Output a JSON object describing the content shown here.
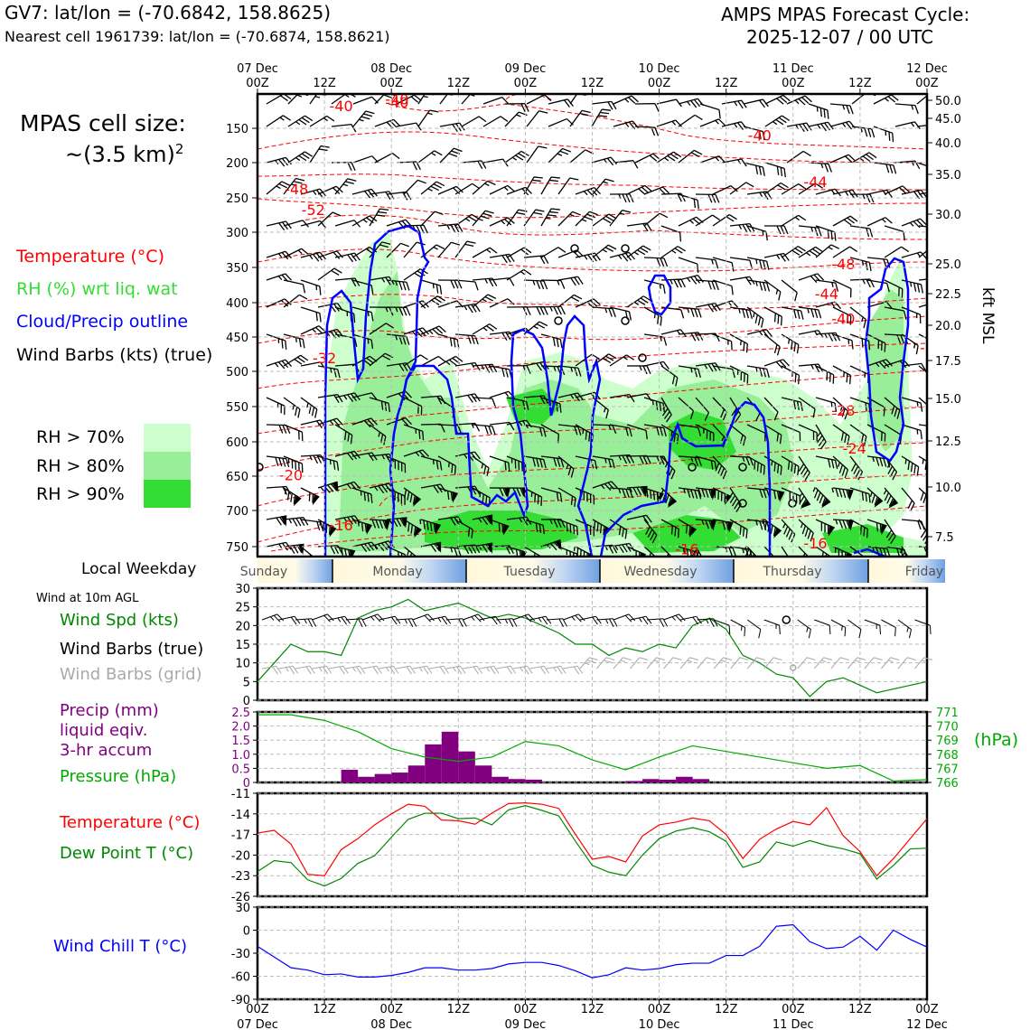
{
  "header": {
    "station": "GV7: lat/lon = (-70.6842, 158.8625)",
    "nearest": "Nearest cell 1961739: lat/lon = (-70.6874, 158.8621)",
    "cycle_title": "AMPS MPAS Forecast Cycle:",
    "cycle_time": "2025-12-07 / 00 UTC"
  },
  "legend": {
    "cell_size_label": "MPAS cell size:",
    "cell_size_value": "~(3.5 km)",
    "cell_size_exp": "2",
    "temperature": "Temperature (°C)",
    "rh": "RH (%) wrt liq. wat",
    "cloud": "Cloud/Precip outline",
    "barbs": "Wind Barbs (kts) (true)",
    "rh70": "RH > 70%",
    "rh80": "RH > 80%",
    "rh90": "RH > 90%"
  },
  "colors": {
    "temp": "#ff0000",
    "rh_text": "#33dd33",
    "cloud": "#0000ff",
    "rh70": "#ccffcc",
    "rh80": "#99ee99",
    "rh90": "#33dd33",
    "precip": "#800080",
    "pressure": "#00aa00",
    "dewpoint": "#008800",
    "windchill": "#0000ff",
    "grid_barbs": "#aaaaaa"
  },
  "time_axis": {
    "top_dates": [
      "07 Dec",
      "",
      "08 Dec",
      "",
      "09 Dec",
      "",
      "10 Dec",
      "",
      "11 Dec",
      "",
      "12 Dec"
    ],
    "hours": [
      "00Z",
      "12Z",
      "00Z",
      "12Z",
      "00Z",
      "12Z",
      "00Z",
      "12Z",
      "00Z",
      "12Z",
      "00Z"
    ],
    "bottom_dates": [
      "07 Dec",
      "",
      "08 Dec",
      "",
      "09 Dec",
      "",
      "10 Dec",
      "",
      "11 Dec",
      "",
      "12 Dec"
    ]
  },
  "weekday": {
    "label": "Local Weekday",
    "days": [
      "Sunday",
      "Monday",
      "Tuesday",
      "Wednesday",
      "Thursday",
      "Friday"
    ]
  },
  "wind_panel": {
    "title": "Wind at 10m AGL",
    "spd_label": "Wind Spd (kts)",
    "true_label": "Wind Barbs (true)",
    "grid_label": "Wind Barbs (grid)"
  },
  "precip_panel": {
    "label1": "Precip (mm)",
    "label2": "liquid eqiv.",
    "label3": "3-hr accum",
    "pressure_label": "Pressure (hPa)",
    "hpa_unit": "(hPa)"
  },
  "temp_panel": {
    "temp_label": "Temperature (°C)",
    "dew_label": "Dew Point T (°C)"
  },
  "chill_panel": {
    "label": "Wind Chill T (°C)"
  },
  "chart_data": [
    {
      "type": "contour",
      "title": "Upper-air time-height cross section",
      "x_hours": [
        0,
        120
      ],
      "y_pressure_ticks": [
        "150",
        "200",
        "250",
        "300",
        "350",
        "400",
        "450",
        "500",
        "550",
        "600",
        "650",
        "700",
        "750"
      ],
      "right_kft_ticks": [
        "50.0",
        "45.0",
        "40.0",
        "35.0",
        "30.0",
        "25.0",
        "22.5",
        "20.0",
        "17.5",
        "15.0",
        "12.5",
        "10.0",
        "7.5"
      ],
      "right_label": "kft MSL",
      "temp_contour_labels": [
        {
          "t": "-40",
          "h": 15,
          "p": 117
        },
        {
          "t": "-40",
          "h": 25,
          "p": 107
        },
        {
          "t": "-40",
          "h": 25,
          "p": 112
        },
        {
          "t": "-40",
          "h": 90,
          "p": 160
        },
        {
          "t": "-44",
          "h": 100,
          "p": 227
        },
        {
          "t": "-48",
          "h": 7,
          "p": 237
        },
        {
          "t": "-52",
          "h": 10,
          "p": 267
        },
        {
          "t": "-48",
          "h": 105,
          "p": 345
        },
        {
          "t": "-44",
          "h": 102,
          "p": 387
        },
        {
          "t": "-40",
          "h": 105,
          "p": 423
        },
        {
          "t": "-32",
          "h": 12,
          "p": 480
        },
        {
          "t": "-28",
          "h": 105,
          "p": 555
        },
        {
          "t": "-24",
          "h": 107,
          "p": 609
        },
        {
          "t": "-20",
          "h": 6,
          "p": 648
        },
        {
          "t": "-16",
          "h": 15,
          "p": 720
        },
        {
          "t": "-16",
          "h": 77,
          "p": 753
        },
        {
          "t": "-16",
          "h": 100,
          "p": 745
        },
        {
          "t": "-3",
          "h": 120,
          "p": 465
        }
      ]
    },
    {
      "type": "line",
      "title": "Wind Spd (kts)",
      "ylim": [
        0,
        30
      ],
      "yticks": [
        "0",
        "5",
        "10",
        "15",
        "20",
        "25",
        "30"
      ],
      "x": [
        0,
        3,
        6,
        9,
        12,
        15,
        18,
        21,
        24,
        27,
        30,
        33,
        36,
        39,
        42,
        45,
        48,
        51,
        54,
        57,
        60,
        63,
        66,
        69,
        72,
        75,
        78,
        81,
        84,
        87,
        90,
        93,
        96,
        99,
        102,
        105,
        108,
        111,
        114,
        117,
        120
      ],
      "values": [
        5,
        10,
        15,
        13,
        13,
        12,
        22,
        24,
        25,
        27,
        24,
        25,
        26,
        24,
        22,
        23,
        22,
        20,
        18,
        15,
        15,
        12,
        14,
        13,
        15,
        14,
        20,
        22,
        19,
        12,
        10,
        7,
        6,
        1,
        5,
        6,
        4,
        2,
        3,
        4,
        5
      ]
    },
    {
      "type": "bar_line",
      "title": "Precip and Pressure",
      "precip_ylim": [
        0,
        2.5
      ],
      "precip_yticks": [
        "0",
        "0.5",
        "1.0",
        "1.5",
        "2.0",
        "2.5"
      ],
      "precip_x": [
        15,
        18,
        21,
        24,
        27,
        30,
        33,
        36,
        39,
        42,
        45,
        48,
        51,
        54,
        57,
        60,
        63,
        66,
        69,
        72,
        75,
        78,
        81,
        84,
        87
      ],
      "precip_values": [
        0.45,
        0.2,
        0.3,
        0.35,
        0.6,
        1.35,
        1.8,
        1.1,
        0.6,
        0.2,
        0.12,
        0.1,
        0,
        0,
        0,
        0,
        0,
        0.05,
        0.12,
        0.1,
        0.2,
        0.12,
        0,
        0,
        0
      ],
      "pressure_ylim": [
        766,
        771
      ],
      "pressure_yticks": [
        "766",
        "767",
        "768",
        "769",
        "770",
        "771"
      ],
      "pressure_x": [
        0,
        6,
        12,
        18,
        24,
        30,
        36,
        42,
        48,
        54,
        60,
        66,
        72,
        78,
        84,
        90,
        96,
        102,
        108,
        114,
        120
      ],
      "pressure_values": [
        770.8,
        770.8,
        770.4,
        769.6,
        768.4,
        767.8,
        767.5,
        767.8,
        768.9,
        768.6,
        767.6,
        766.9,
        767.8,
        768.6,
        768.2,
        767.8,
        767.4,
        767.0,
        767.2,
        766.1,
        766.2
      ]
    },
    {
      "type": "line",
      "title": "Temperature and Dew Point",
      "ylim": [
        -26,
        -11
      ],
      "yticks": [
        "-11",
        "-14",
        "-17",
        "-20",
        "-23",
        "-26"
      ],
      "x": [
        0,
        3,
        6,
        9,
        12,
        15,
        18,
        21,
        24,
        27,
        30,
        33,
        36,
        39,
        42,
        45,
        48,
        51,
        54,
        57,
        60,
        63,
        66,
        69,
        72,
        75,
        78,
        81,
        84,
        87,
        90,
        93,
        96,
        99,
        102,
        105,
        108,
        111,
        114,
        117,
        120
      ],
      "series": [
        {
          "name": "Temperature",
          "values": [
            -16.8,
            -16.4,
            -18.4,
            -22.8,
            -23.0,
            -19.2,
            -17.6,
            -15.6,
            -14.0,
            -12.6,
            -12.9,
            -14.9,
            -15.0,
            -15.5,
            -13.9,
            -12.5,
            -12.4,
            -12.6,
            -13.2,
            -17.0,
            -20.6,
            -20.2,
            -21.0,
            -17.2,
            -15.6,
            -15.2,
            -14.6,
            -15.0,
            -17.0,
            -20.5,
            -17.7,
            -16.2,
            -15.1,
            -15.6,
            -13.1,
            -17.2,
            -19.5,
            -23.0,
            -20.5,
            -17.6,
            -14.7
          ]
        },
        {
          "name": "Dew Point",
          "values": [
            -22.4,
            -20.8,
            -21.1,
            -23.6,
            -24.5,
            -23.4,
            -21.2,
            -20.1,
            -17.4,
            -14.8,
            -13.9,
            -13.9,
            -14.7,
            -14.6,
            -15.6,
            -13.4,
            -12.8,
            -13.5,
            -14.3,
            -18.0,
            -21.5,
            -22.5,
            -23.0,
            -20.0,
            -17.6,
            -16.5,
            -16.0,
            -16.6,
            -18.0,
            -21.8,
            -21.0,
            -18.1,
            -18.7,
            -17.9,
            -18.6,
            -19.1,
            -19.8,
            -23.5,
            -21.5,
            -19.1,
            -19.0
          ]
        }
      ]
    },
    {
      "type": "line",
      "title": "Wind Chill T",
      "ylim": [
        -90,
        30
      ],
      "yticks": [
        "30",
        "0",
        "-30",
        "-60",
        "-90"
      ],
      "x": [
        0,
        3,
        6,
        9,
        12,
        15,
        18,
        21,
        24,
        27,
        30,
        33,
        36,
        39,
        42,
        45,
        48,
        51,
        54,
        57,
        60,
        63,
        66,
        69,
        72,
        75,
        78,
        81,
        84,
        87,
        90,
        93,
        96,
        99,
        102,
        105,
        108,
        111,
        114,
        117,
        120
      ],
      "values": [
        -21,
        -35,
        -49,
        -52,
        -58,
        -57,
        -61,
        -61,
        -59,
        -55,
        -49,
        -49,
        -52,
        -52,
        -50,
        -44,
        -42,
        -42,
        -46,
        -53,
        -62,
        -58,
        -49,
        -52,
        -50,
        -45,
        -43,
        -43,
        -33,
        -33,
        -21,
        5,
        7,
        -15,
        -24,
        -22,
        -8,
        -26,
        0,
        -12,
        -22
      ]
    }
  ]
}
